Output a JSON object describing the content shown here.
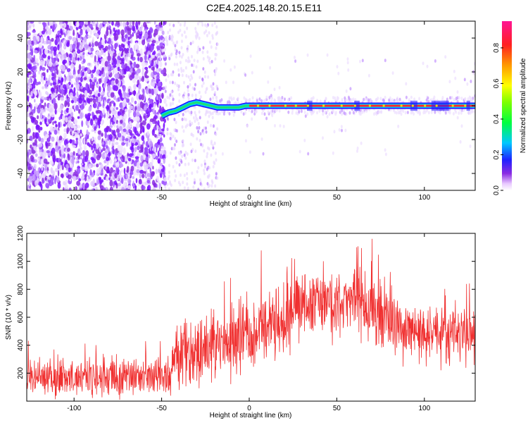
{
  "title": "C2E4.2025.148.20.15.E11",
  "chart_data": [
    {
      "type": "heatmap",
      "xlabel": "Height of straight line (km)",
      "ylabel": "Frequency (Hz)",
      "xlim": [
        -127,
        129
      ],
      "ylim": [
        -50,
        50
      ],
      "xticks": [
        -100,
        -50,
        0,
        50,
        100
      ],
      "xtick_labels": [
        "-100",
        "-50",
        "0",
        "50",
        "100"
      ],
      "yticks": [
        -40,
        -20,
        0,
        20,
        40
      ],
      "ytick_labels": [
        "-40",
        "-20",
        "0",
        "20",
        "40"
      ],
      "colorbar": {
        "label": "Normalized spectral amplitude",
        "range": [
          0.0,
          0.95
        ],
        "ticks": [
          0.0,
          0.2,
          0.4,
          0.6,
          0.8
        ],
        "tick_labels": [
          "0.0",
          "0.2",
          "0.4",
          "0.6",
          "0.8"
        ]
      },
      "tone_track": {
        "x": [
          -50,
          -46,
          -42,
          -38,
          -34,
          -30,
          -26,
          -22,
          -18,
          -14,
          -10,
          -6,
          -2,
          2,
          10,
          20,
          40,
          60,
          80,
          100,
          129
        ],
        "y": [
          -6,
          -4,
          -3,
          -1,
          1,
          2,
          1,
          0,
          -1,
          -1,
          -1,
          -1,
          0,
          0,
          0,
          0,
          0,
          0,
          0,
          0,
          0
        ]
      },
      "grid": false
    },
    {
      "type": "line",
      "xlabel": "Height of straight line (km)",
      "ylabel": "SNR (10 * v/v)",
      "xlim": [
        -127,
        129
      ],
      "ylim": [
        0,
        1200
      ],
      "xticks": [
        -100,
        -50,
        0,
        50,
        100
      ],
      "xtick_labels": [
        "-100",
        "-50",
        "0",
        "50",
        "100"
      ],
      "yticks": [
        200,
        400,
        600,
        800,
        1000,
        1200
      ],
      "ytick_labels": [
        "200",
        "400",
        "600",
        "800",
        "1000",
        "1200"
      ],
      "color": "#f03030",
      "x": [
        -127,
        -110,
        -90,
        -70,
        -50,
        -45,
        -42,
        -40,
        -30,
        -20,
        -10,
        0,
        10,
        20,
        30,
        40,
        50,
        60,
        70,
        80,
        90,
        100,
        110,
        120,
        129
      ],
      "y": [
        165,
        170,
        165,
        170,
        180,
        190,
        400,
        330,
        360,
        410,
        420,
        480,
        570,
        640,
        700,
        720,
        720,
        700,
        640,
        560,
        520,
        500,
        490,
        500,
        500
      ],
      "spread": [
        [
          -127,
          150
        ],
        [
          -43,
          150
        ],
        [
          -42,
          260
        ],
        [
          20,
          280
        ],
        [
          60,
          300
        ],
        [
          90,
          240
        ],
        [
          129,
          240
        ]
      ],
      "grid": false
    }
  ]
}
